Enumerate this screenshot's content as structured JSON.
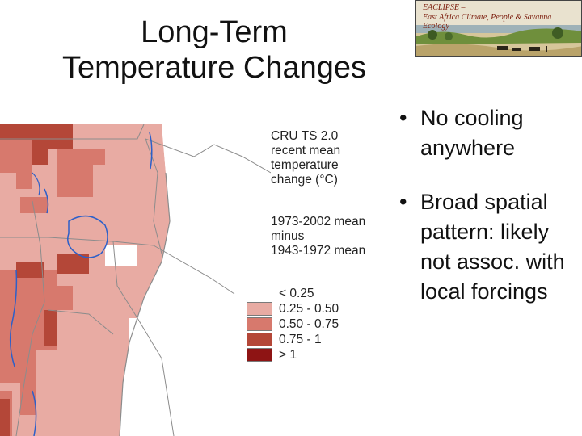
{
  "title_lines": [
    "Long-Term",
    "Temperature Changes"
  ],
  "logo": {
    "line1": "EACLIPSE –",
    "line2": "East Africa Climate, People & Savanna Ecology"
  },
  "map_caption": {
    "lines_a": [
      "CRU TS 2.0",
      "recent mean",
      "temperature",
      "change (°C)"
    ],
    "lines_b": [
      "1973-2002 mean",
      "minus",
      "1943-1972 mean"
    ]
  },
  "legend": [
    {
      "label": "< 0.25",
      "color": "#ffffff"
    },
    {
      "label": "0.25 - 0.50",
      "color": "#e8aba3"
    },
    {
      "label": "0.50 - 0.75",
      "color": "#d7796d"
    },
    {
      "label": "0.75 - 1",
      "color": "#b44738"
    },
    {
      "label": "> 1",
      "color": "#8e1414"
    }
  ],
  "bullets": [
    {
      "text": "No cooling anywhere",
      "marker": "•"
    },
    {
      "text": "Broad spatial pattern: likely not assoc. with local forcings",
      "marker": "•"
    }
  ],
  "colors": {
    "light": "#e8aba3",
    "medium": "#d7796d",
    "dark": "#b44738",
    "darkest": "#8e1414",
    "lake": "#2c5fc9",
    "border": "#8c8c8c"
  }
}
